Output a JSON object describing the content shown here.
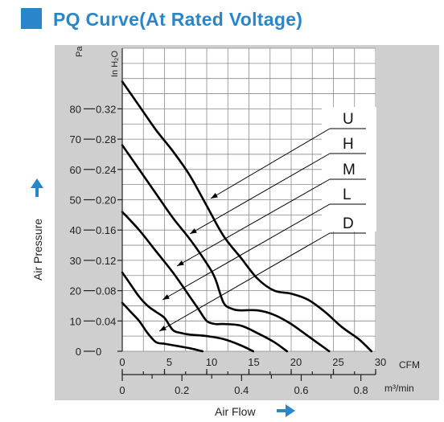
{
  "title": "PQ Curve(At Rated Voltage)",
  "colors": {
    "accent": "#2a86c8",
    "panel": "#cfcfcf",
    "plot_bg": "#ffffff",
    "curve": "#000000"
  },
  "chart_data": {
    "type": "line",
    "title": "PQ Curve(At Rated Voltage)",
    "xlabel": "Air Flow",
    "ylabel": "Air Pressure",
    "x_unit_primary": "CFM",
    "x_unit_secondary": "m³/min",
    "y_unit_primary": "Pa",
    "y_unit_secondary": "In H₂O",
    "xlim": [
      0,
      30
    ],
    "ylim": [
      0,
      100
    ],
    "grid": true,
    "x_ticks": [
      "0",
      "5",
      "10",
      "15",
      "20",
      "25",
      "30"
    ],
    "x_ticks_secondary": [
      "0",
      "0.2",
      "0.4",
      "0.6",
      "0.8"
    ],
    "y_ticks_pa": [
      "0",
      "10",
      "20",
      "30",
      "40",
      "50",
      "60",
      "70",
      "80"
    ],
    "y_ticks_inh2o": [
      "0",
      "0.04",
      "0.08",
      "0.12",
      "0.16",
      "0.20",
      "0.24",
      "0.28",
      "0.32"
    ],
    "series": [
      {
        "name": "U",
        "x": [
          0,
          2,
          4,
          6,
          8,
          10,
          12,
          14,
          16,
          18,
          20,
          22,
          24,
          26,
          28,
          29.5
        ],
        "y": [
          89,
          81,
          73,
          66,
          58,
          48,
          38,
          31,
          24,
          20,
          19,
          17,
          13,
          8,
          4,
          0
        ]
      },
      {
        "name": "H",
        "x": [
          0,
          2,
          4,
          6,
          8,
          10,
          11,
          12,
          13,
          14,
          16,
          18,
          20,
          22,
          23,
          24.5
        ],
        "y": [
          68,
          60,
          52,
          44,
          37,
          29,
          24,
          16,
          14,
          13.5,
          13.5,
          12,
          9,
          5,
          3,
          0
        ]
      },
      {
        "name": "M",
        "x": [
          0,
          2,
          4,
          6,
          8,
          9,
          10,
          11,
          12,
          14,
          16,
          18,
          19.5
        ],
        "y": [
          46,
          40,
          33,
          26,
          18,
          14,
          10,
          9,
          9,
          8.5,
          6,
          3,
          0
        ]
      },
      {
        "name": "L",
        "x": [
          0,
          1,
          2,
          3,
          4,
          5,
          6,
          7,
          8,
          10,
          12,
          14,
          15.5
        ],
        "y": [
          26,
          22,
          18,
          15,
          13,
          11,
          7,
          6,
          5.5,
          5,
          4,
          2,
          0
        ]
      },
      {
        "name": "D",
        "x": [
          0,
          1,
          2,
          3,
          4,
          5,
          6,
          7,
          8,
          9.5
        ],
        "y": [
          16,
          13,
          10,
          6,
          3,
          2.5,
          2,
          1.5,
          1,
          0
        ]
      }
    ]
  }
}
